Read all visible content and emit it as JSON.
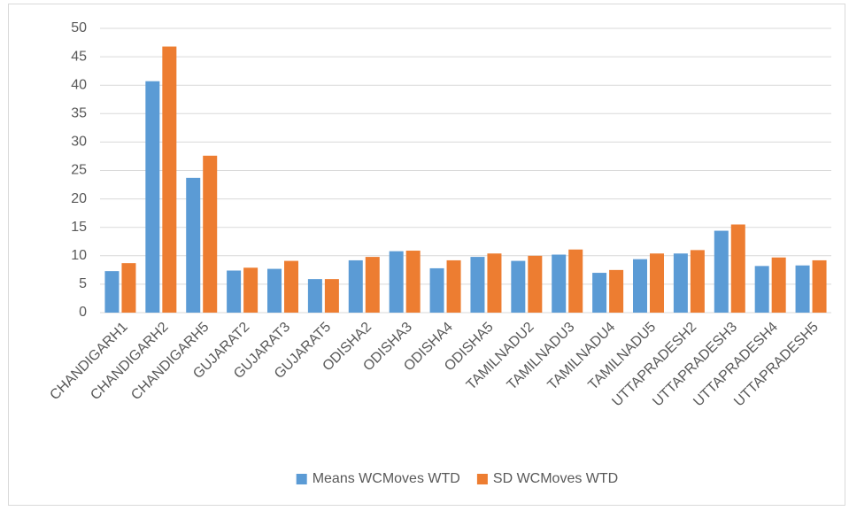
{
  "chart_data": {
    "type": "bar",
    "categories": [
      "CHANDIGARH1",
      "CHANDIGARH2",
      "CHANDIGARH5",
      "GUJARAT2",
      "GUJARAT3",
      "GUJARAT5",
      "ODISHA2",
      "ODISHA3",
      "ODISHA4",
      "ODISHA5",
      "TAMILNADU2",
      "TAMILNADU3",
      "TAMILNADU4",
      "TAMILNADU5",
      "UTTAPRADESH2",
      "UTTAPRADESH3",
      "UTTAPRADESH4",
      "UTTAPRADESH5"
    ],
    "series": [
      {
        "name": "Means WCMoves WTD",
        "color": "#5b9bd5",
        "values": [
          7.3,
          40.7,
          23.7,
          7.4,
          7.7,
          5.9,
          9.2,
          10.8,
          7.8,
          9.8,
          9.1,
          10.2,
          7.0,
          9.4,
          10.4,
          14.4,
          8.2,
          8.3
        ]
      },
      {
        "name": "SD WCMoves WTD",
        "color": "#ed7d31",
        "values": [
          8.7,
          46.8,
          27.6,
          7.9,
          9.1,
          5.9,
          9.8,
          10.9,
          9.2,
          10.4,
          10.0,
          11.1,
          7.5,
          10.4,
          11.0,
          15.5,
          9.7,
          9.2
        ]
      }
    ],
    "ylim": [
      0,
      50
    ],
    "yticks": [
      0,
      5,
      10,
      15,
      20,
      25,
      30,
      35,
      40,
      45,
      50
    ],
    "grid": true,
    "legend": "bottom"
  }
}
